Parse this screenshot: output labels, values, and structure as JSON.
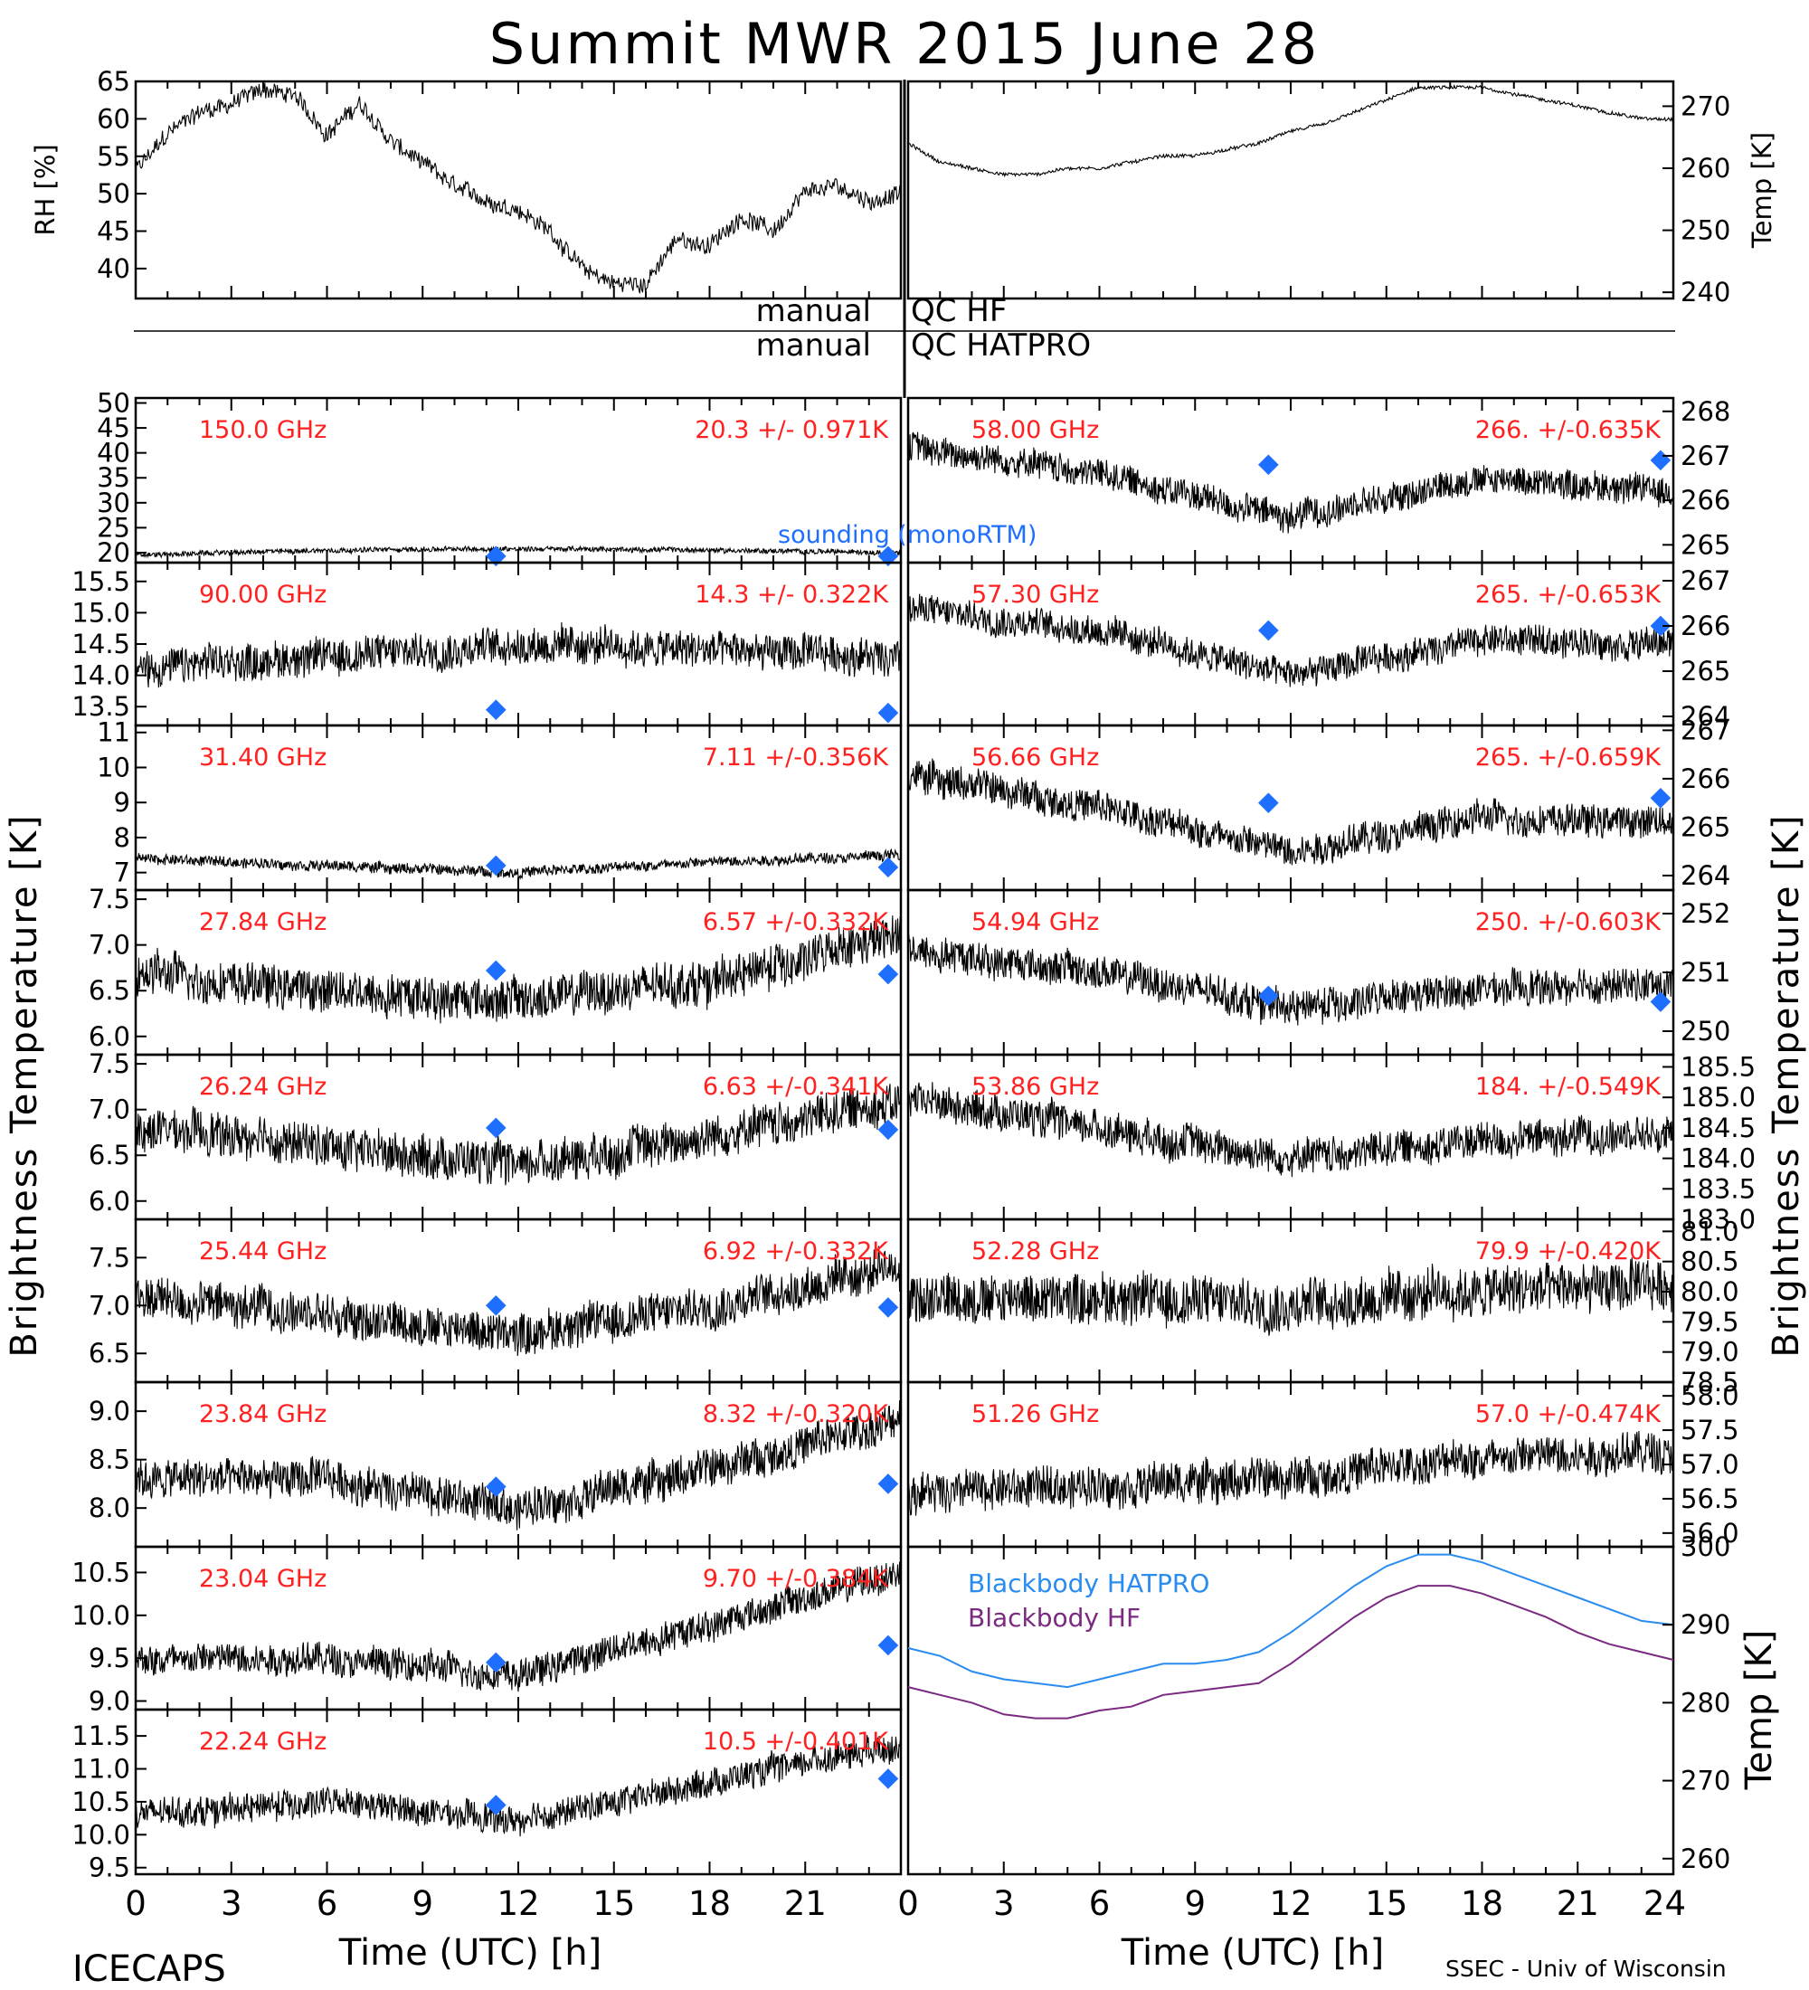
{
  "title": "Summit MWR 2015 June 28",
  "footer": {
    "left": "ICECAPS",
    "right": "SSEC - Univ of Wisconsin",
    "xlabel": "Time (UTC) [h]",
    "xticks_left": [
      "0",
      "3",
      "6",
      "9",
      "12",
      "15",
      "18",
      "21"
    ],
    "xticks_right": [
      "0",
      "3",
      "6",
      "9",
      "12",
      "15",
      "18",
      "21",
      "24"
    ]
  },
  "side_labels": {
    "left": "Brightness Temperature [K]",
    "right": "Brightness Temperature [K]"
  },
  "qc": {
    "line1_left": "manual",
    "line1_right": "QC HF",
    "line2_left": "manual",
    "line2_right": "QC HATPRO"
  },
  "legend_sounding": "sounding (monoRTM)",
  "colors": {
    "label": "#ff2020",
    "sounding": "#1e6fff",
    "bb_hatpro": "#2a8cf0",
    "bb_hf": "#7a2a80",
    "trace": "#000000"
  },
  "chart_data": [
    {
      "type": "line",
      "panel": "rh",
      "ylabel": "RH [%]",
      "ylim": [
        36,
        65
      ],
      "xlim": [
        0,
        24
      ],
      "yticks": [
        "65",
        "60",
        "55",
        "50",
        "45",
        "40"
      ],
      "series": [
        {
          "x": [
            0,
            1,
            2,
            3,
            4,
            5,
            6,
            7,
            8,
            9,
            10,
            11,
            12,
            13,
            14,
            15,
            16,
            17,
            18,
            19,
            20,
            21,
            22,
            23,
            24
          ],
          "y": [
            53,
            58,
            61,
            62,
            64,
            63,
            58,
            62,
            57,
            54,
            51,
            49,
            48,
            45,
            40,
            38,
            38,
            44,
            43,
            47,
            45,
            50,
            51,
            49,
            50
          ]
        }
      ]
    },
    {
      "type": "line",
      "panel": "temp",
      "ylabel": "Temp [K]",
      "ylim": [
        239,
        274
      ],
      "xlim": [
        0,
        24
      ],
      "yticks": [
        "270",
        "260",
        "250",
        "240"
      ],
      "series": [
        {
          "x": [
            0,
            1,
            2,
            3,
            4,
            5,
            6,
            7,
            8,
            9,
            10,
            11,
            12,
            13,
            14,
            15,
            16,
            17,
            18,
            19,
            20,
            21,
            22,
            23,
            24
          ],
          "y": [
            264,
            261,
            260,
            259,
            259,
            260,
            260,
            261,
            262,
            262,
            263,
            264,
            266,
            267,
            269,
            271,
            273,
            273,
            273,
            272,
            271,
            270,
            269,
            268,
            268
          ]
        }
      ]
    },
    {
      "type": "line",
      "side": "left",
      "row": 0,
      "freq": "150.0 GHz",
      "stat": "20.3 +/- 0.971K",
      "ylim": [
        18,
        51
      ],
      "yticks": [
        "50",
        "45",
        "40",
        "35",
        "30",
        "25",
        "20"
      ],
      "base": [
        19.5,
        20.5,
        20.8,
        20.5,
        20.0
      ],
      "noise": 0.6,
      "sounding": [
        [
          11.3,
          19.3
        ],
        [
          23.6,
          19.3
        ]
      ]
    },
    {
      "type": "line",
      "side": "left",
      "row": 1,
      "freq": "90.00 GHz",
      "stat": "14.3 +/- 0.322K",
      "ylim": [
        13.2,
        15.8
      ],
      "yticks": [
        "15.5",
        "15.0",
        "14.5",
        "14.0",
        "13.5"
      ],
      "base": [
        14.1,
        14.3,
        14.5,
        14.4,
        14.3
      ],
      "noise": 0.35,
      "sounding": [
        [
          11.3,
          13.45
        ],
        [
          23.6,
          13.4
        ]
      ]
    },
    {
      "type": "line",
      "side": "left",
      "row": 2,
      "freq": "31.40 GHz",
      "stat": "7.11 +/-0.356K",
      "ylim": [
        6.5,
        11.2
      ],
      "yticks": [
        "11",
        "10",
        "9",
        "8",
        "7"
      ],
      "base": [
        7.4,
        7.2,
        7.0,
        7.3,
        7.5
      ],
      "noise": 0.18,
      "sounding": [
        [
          11.3,
          7.2
        ],
        [
          23.6,
          7.15
        ]
      ]
    },
    {
      "type": "line",
      "side": "left",
      "row": 3,
      "freq": "27.84 GHz",
      "stat": "6.57 +/-0.332K",
      "ylim": [
        5.8,
        7.6
      ],
      "yticks": [
        "7.5",
        "7.0",
        "6.5",
        "6.0"
      ],
      "base": [
        6.7,
        6.5,
        6.4,
        6.6,
        7.1
      ],
      "noise": 0.28,
      "sounding": [
        [
          11.3,
          6.72
        ],
        [
          23.6,
          6.68
        ]
      ]
    },
    {
      "type": "line",
      "side": "left",
      "row": 4,
      "freq": "26.24 GHz",
      "stat": "6.63 +/-0.341K",
      "ylim": [
        5.8,
        7.6
      ],
      "yticks": [
        "7.5",
        "7.0",
        "6.5",
        "6.0"
      ],
      "base": [
        6.8,
        6.6,
        6.4,
        6.7,
        7.1
      ],
      "noise": 0.28,
      "sounding": [
        [
          11.3,
          6.8
        ],
        [
          23.6,
          6.78
        ]
      ]
    },
    {
      "type": "line",
      "side": "left",
      "row": 5,
      "freq": "25.44 GHz",
      "stat": "6.92 +/-0.332K",
      "ylim": [
        6.2,
        7.9
      ],
      "yticks": [
        "7.5",
        "7.0",
        "6.5"
      ],
      "base": [
        7.1,
        6.9,
        6.7,
        7.0,
        7.4
      ],
      "noise": 0.26,
      "sounding": [
        [
          11.3,
          7.0
        ],
        [
          23.6,
          6.98
        ]
      ]
    },
    {
      "type": "line",
      "side": "left",
      "row": 6,
      "freq": "23.84 GHz",
      "stat": "8.32 +/-0.320K",
      "ylim": [
        7.6,
        9.3
      ],
      "yticks": [
        "9.0",
        "8.5",
        "8.0"
      ],
      "base": [
        8.3,
        8.3,
        8.0,
        8.4,
        8.9
      ],
      "noise": 0.24,
      "sounding": [
        [
          11.3,
          8.22
        ],
        [
          23.6,
          8.25
        ]
      ]
    },
    {
      "type": "line",
      "side": "left",
      "row": 7,
      "freq": "23.04 GHz",
      "stat": "9.70 +/-0.384K",
      "ylim": [
        8.9,
        10.8
      ],
      "yticks": [
        "10.5",
        "10.0",
        "9.5",
        "9.0"
      ],
      "base": [
        9.5,
        9.5,
        9.3,
        9.9,
        10.5
      ],
      "noise": 0.22,
      "sounding": [
        [
          11.3,
          9.45
        ],
        [
          23.6,
          9.65
        ]
      ]
    },
    {
      "type": "line",
      "side": "left",
      "row": 8,
      "freq": "22.24 GHz",
      "stat": "10.5 +/-0.401K",
      "ylim": [
        9.4,
        11.9
      ],
      "yticks": [
        "11.5",
        "11.0",
        "10.5",
        "10.0",
        "9.5"
      ],
      "base": [
        10.3,
        10.5,
        10.2,
        10.8,
        11.4
      ],
      "noise": 0.26,
      "sounding": [
        [
          11.3,
          10.45
        ],
        [
          23.6,
          10.85
        ]
      ]
    },
    {
      "type": "line",
      "side": "right",
      "row": 0,
      "freq": "58.00 GHz",
      "stat": "266. +/-0.635K",
      "ylim": [
        264.6,
        268.3
      ],
      "yticks": [
        "268",
        "267",
        "266",
        "265"
      ],
      "base": [
        267.2,
        266.6,
        265.6,
        266.5,
        266.2
      ],
      "noise": 0.4,
      "sounding": [
        [
          11.3,
          266.8
        ],
        [
          23.6,
          266.9
        ]
      ]
    },
    {
      "type": "line",
      "side": "right",
      "row": 1,
      "freq": "57.30 GHz",
      "stat": "265. +/-0.653K",
      "ylim": [
        263.8,
        267.4
      ],
      "yticks": [
        "267",
        "266",
        "265",
        "264"
      ],
      "base": [
        266.4,
        265.9,
        264.9,
        265.7,
        265.6
      ],
      "noise": 0.4,
      "sounding": [
        [
          11.3,
          265.9
        ],
        [
          23.6,
          266.0
        ]
      ]
    },
    {
      "type": "line",
      "side": "right",
      "row": 2,
      "freq": "56.66 GHz",
      "stat": "265. +/-0.659K",
      "ylim": [
        263.7,
        267.1
      ],
      "yticks": [
        "267",
        "266",
        "265",
        "264"
      ],
      "base": [
        266.1,
        265.4,
        264.5,
        265.2,
        265.1
      ],
      "noise": 0.4,
      "sounding": [
        [
          11.3,
          265.5
        ],
        [
          23.6,
          265.6
        ]
      ]
    },
    {
      "type": "line",
      "side": "right",
      "row": 3,
      "freq": "54.94 GHz",
      "stat": "250. +/-0.603K",
      "ylim": [
        249.6,
        252.4
      ],
      "yticks": [
        "252",
        "251",
        "250"
      ],
      "base": [
        251.4,
        251.0,
        250.4,
        250.7,
        250.8
      ],
      "noise": 0.35,
      "sounding": [
        [
          11.3,
          250.6
        ],
        [
          23.6,
          250.5
        ]
      ]
    },
    {
      "type": "line",
      "side": "right",
      "row": 4,
      "freq": "53.86 GHz",
      "stat": "184. +/-0.549K",
      "ylim": [
        183.0,
        185.7
      ],
      "yticks": [
        "185.5",
        "185.0",
        "184.5",
        "184.0",
        "183.5",
        "183.0"
      ],
      "base": [
        185.0,
        184.5,
        184.0,
        184.3,
        184.4
      ],
      "noise": 0.35
    },
    {
      "type": "line",
      "side": "right",
      "row": 5,
      "freq": "52.28 GHz",
      "stat": "79.9 +/-0.420K",
      "ylim": [
        78.5,
        81.2
      ],
      "yticks": [
        "81.0",
        "80.5",
        "80.0",
        "79.5",
        "79.0",
        "78.5"
      ],
      "base": [
        79.9,
        79.9,
        79.8,
        80.0,
        80.1
      ],
      "noise": 0.5
    },
    {
      "type": "line",
      "side": "right",
      "row": 6,
      "freq": "51.26 GHz",
      "stat": "57.0 +/-0.474K",
      "ylim": [
        55.8,
        58.2
      ],
      "yticks": [
        "58.0",
        "57.5",
        "57.0",
        "56.5",
        "56.0"
      ],
      "base": [
        56.6,
        56.7,
        56.8,
        57.1,
        57.2
      ],
      "noise": 0.35
    },
    {
      "type": "line",
      "panel": "blackbody",
      "ylabel": "Temp [K]",
      "ylim": [
        258,
        300
      ],
      "xlim": [
        0,
        24
      ],
      "yticks": [
        "300",
        "290",
        "280",
        "270",
        "260"
      ],
      "series": [
        {
          "name": "Blackbody HATPRO",
          "x": [
            0,
            1,
            2,
            3,
            4,
            5,
            6,
            7,
            8,
            9,
            10,
            11,
            12,
            13,
            14,
            15,
            16,
            17,
            18,
            19,
            20,
            21,
            22,
            23,
            24
          ],
          "y": [
            287,
            286,
            284,
            283,
            282.5,
            282,
            283,
            284,
            285,
            285,
            285.5,
            286.5,
            289,
            292,
            295,
            297.5,
            299,
            299,
            298,
            296.5,
            295,
            293.5,
            292,
            290.5,
            290
          ]
        },
        {
          "name": "Blackbody HF",
          "x": [
            0,
            1,
            2,
            3,
            4,
            5,
            6,
            7,
            8,
            9,
            10,
            11,
            12,
            13,
            14,
            15,
            16,
            17,
            18,
            19,
            20,
            21,
            22,
            23,
            24
          ],
          "y": [
            282,
            281,
            280,
            278.5,
            278,
            278,
            279,
            279.5,
            281,
            281.5,
            282,
            282.5,
            285,
            288,
            291,
            293.5,
            295,
            295,
            294,
            292.5,
            291,
            289,
            287.5,
            286.5,
            285.5
          ]
        }
      ]
    }
  ]
}
